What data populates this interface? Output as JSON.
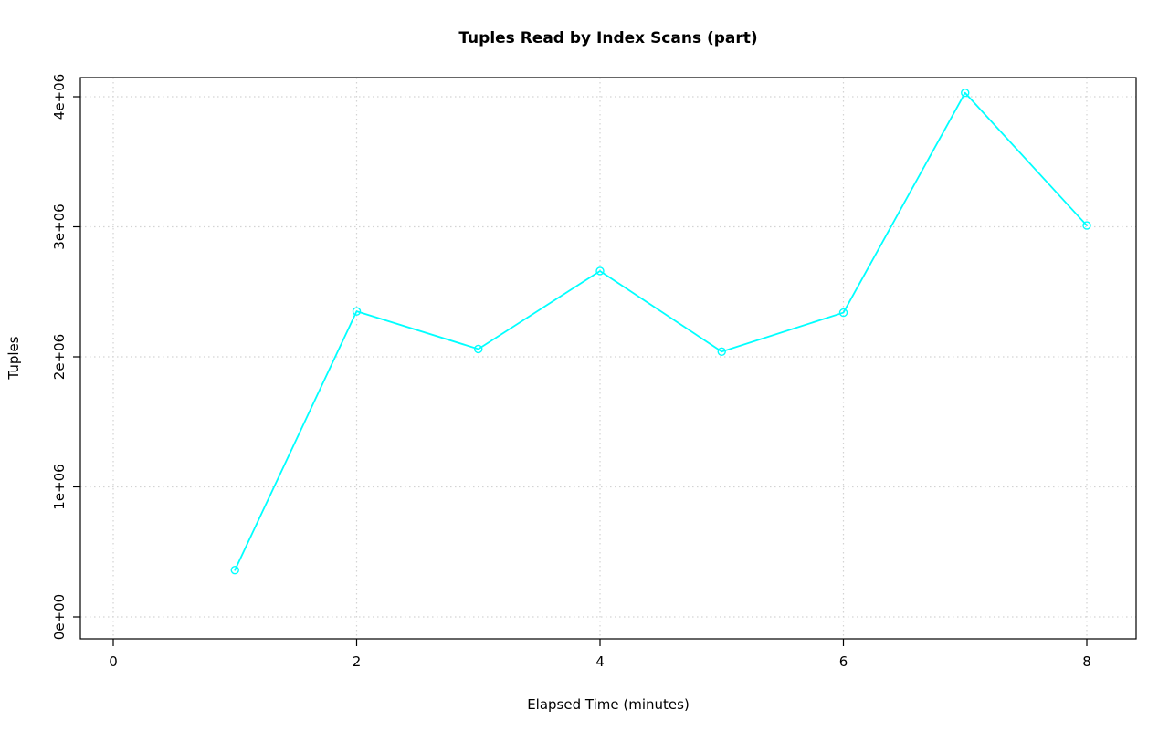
{
  "chart_data": {
    "type": "line",
    "title": "Tuples Read by Index Scans (part)",
    "xlabel": "Elapsed Time (minutes)",
    "ylabel": "Tuples",
    "x": [
      1,
      2,
      3,
      4,
      5,
      6,
      7,
      8
    ],
    "values": [
      360000,
      2350000,
      2060000,
      2660000,
      2040000,
      2340000,
      4030000,
      3010000
    ],
    "xlim": [
      0,
      8
    ],
    "ylim": [
      0,
      4000000
    ],
    "xticks": [
      0,
      2,
      4,
      6,
      8
    ],
    "xtick_labels": [
      "0",
      "2",
      "4",
      "6",
      "8"
    ],
    "yticks": [
      0,
      1000000,
      2000000,
      3000000,
      4000000
    ],
    "ytick_labels": [
      "0e+00",
      "1e+06",
      "2e+06",
      "3e+06",
      "4e+06"
    ],
    "grid": true,
    "legend": "none",
    "marker": "open-circle",
    "colors": {
      "line": "#00ffff",
      "grid": "#d3d3d3",
      "axis": "#000000",
      "background": "#ffffff"
    }
  }
}
